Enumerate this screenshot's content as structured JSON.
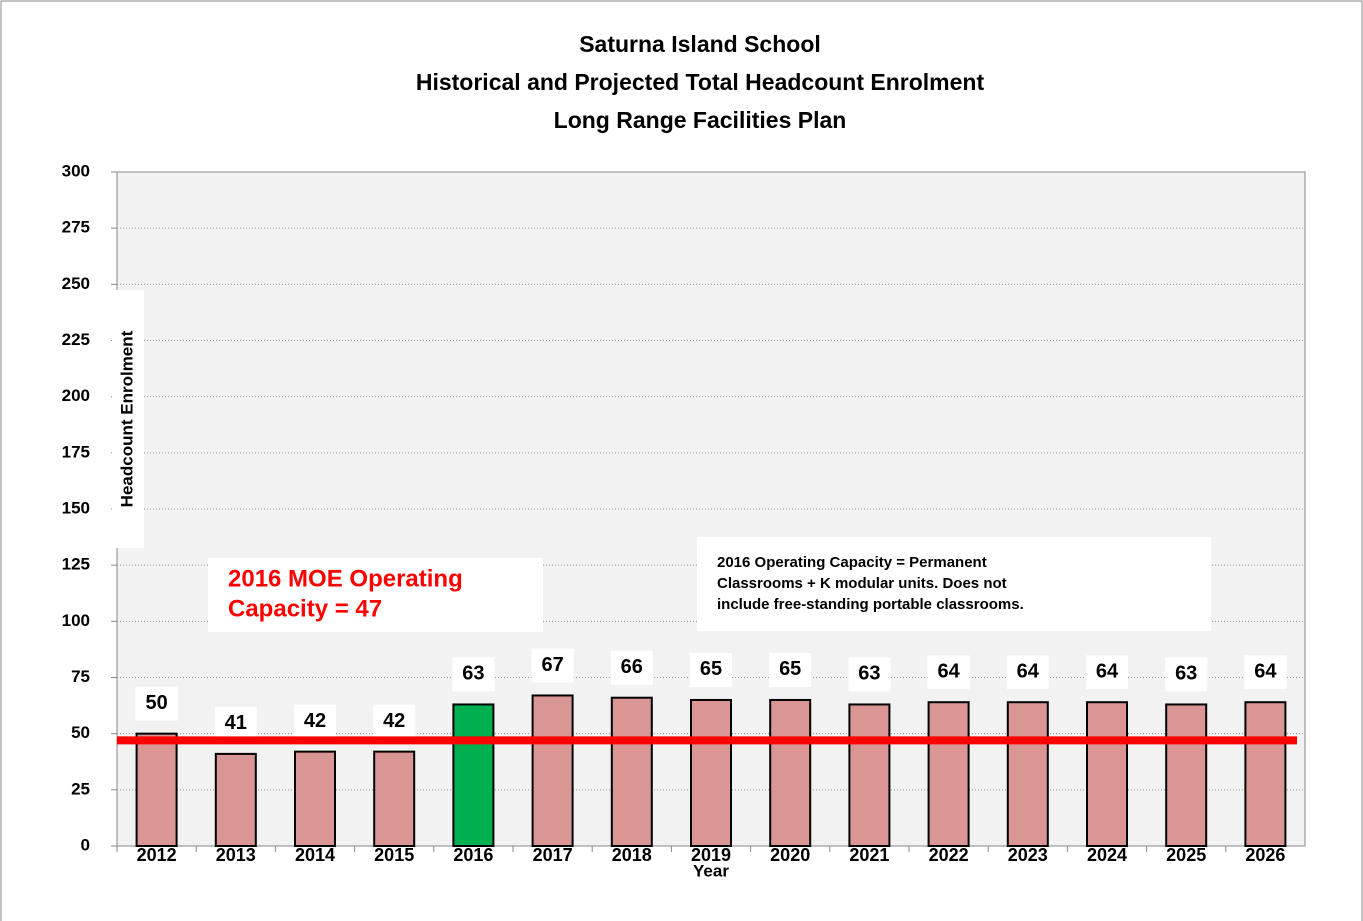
{
  "chart_data": {
    "type": "bar",
    "title": [
      "Saturna Island School",
      "Historical and Projected Total Headcount Enrolment",
      "Long Range Facilities Plan"
    ],
    "xlabel": "Year",
    "ylabel": "Headcount Enrolment",
    "categories": [
      "2012",
      "2013",
      "2014",
      "2015",
      "2016",
      "2017",
      "2018",
      "2019",
      "2020",
      "2021",
      "2022",
      "2023",
      "2024",
      "2025",
      "2026"
    ],
    "values": [
      50,
      41,
      42,
      42,
      63,
      67,
      66,
      65,
      65,
      63,
      64,
      64,
      64,
      63,
      64
    ],
    "colors": [
      "#d99694",
      "#d99694",
      "#d99694",
      "#d99694",
      "#00b050",
      "#d99694",
      "#d99694",
      "#d99694",
      "#d99694",
      "#d99694",
      "#d99694",
      "#d99694",
      "#d99694",
      "#d99694",
      "#d99694"
    ],
    "ylim": [
      0,
      300
    ],
    "yticks": [
      0,
      25,
      50,
      75,
      100,
      125,
      150,
      175,
      200,
      225,
      250,
      275,
      300
    ],
    "grid": true,
    "reference_line": {
      "value": 47,
      "color": "#ff0000"
    },
    "annotations": [
      {
        "lines": [
          "2016 MOE Operating",
          "Capacity = 47"
        ],
        "color": "#ff0000"
      },
      {
        "lines": [
          "2016 Operating Capacity = Permanent",
          "Classrooms + K modular units.  Does not",
          "include free-standing portable classrooms."
        ],
        "color": "#000000"
      }
    ]
  }
}
